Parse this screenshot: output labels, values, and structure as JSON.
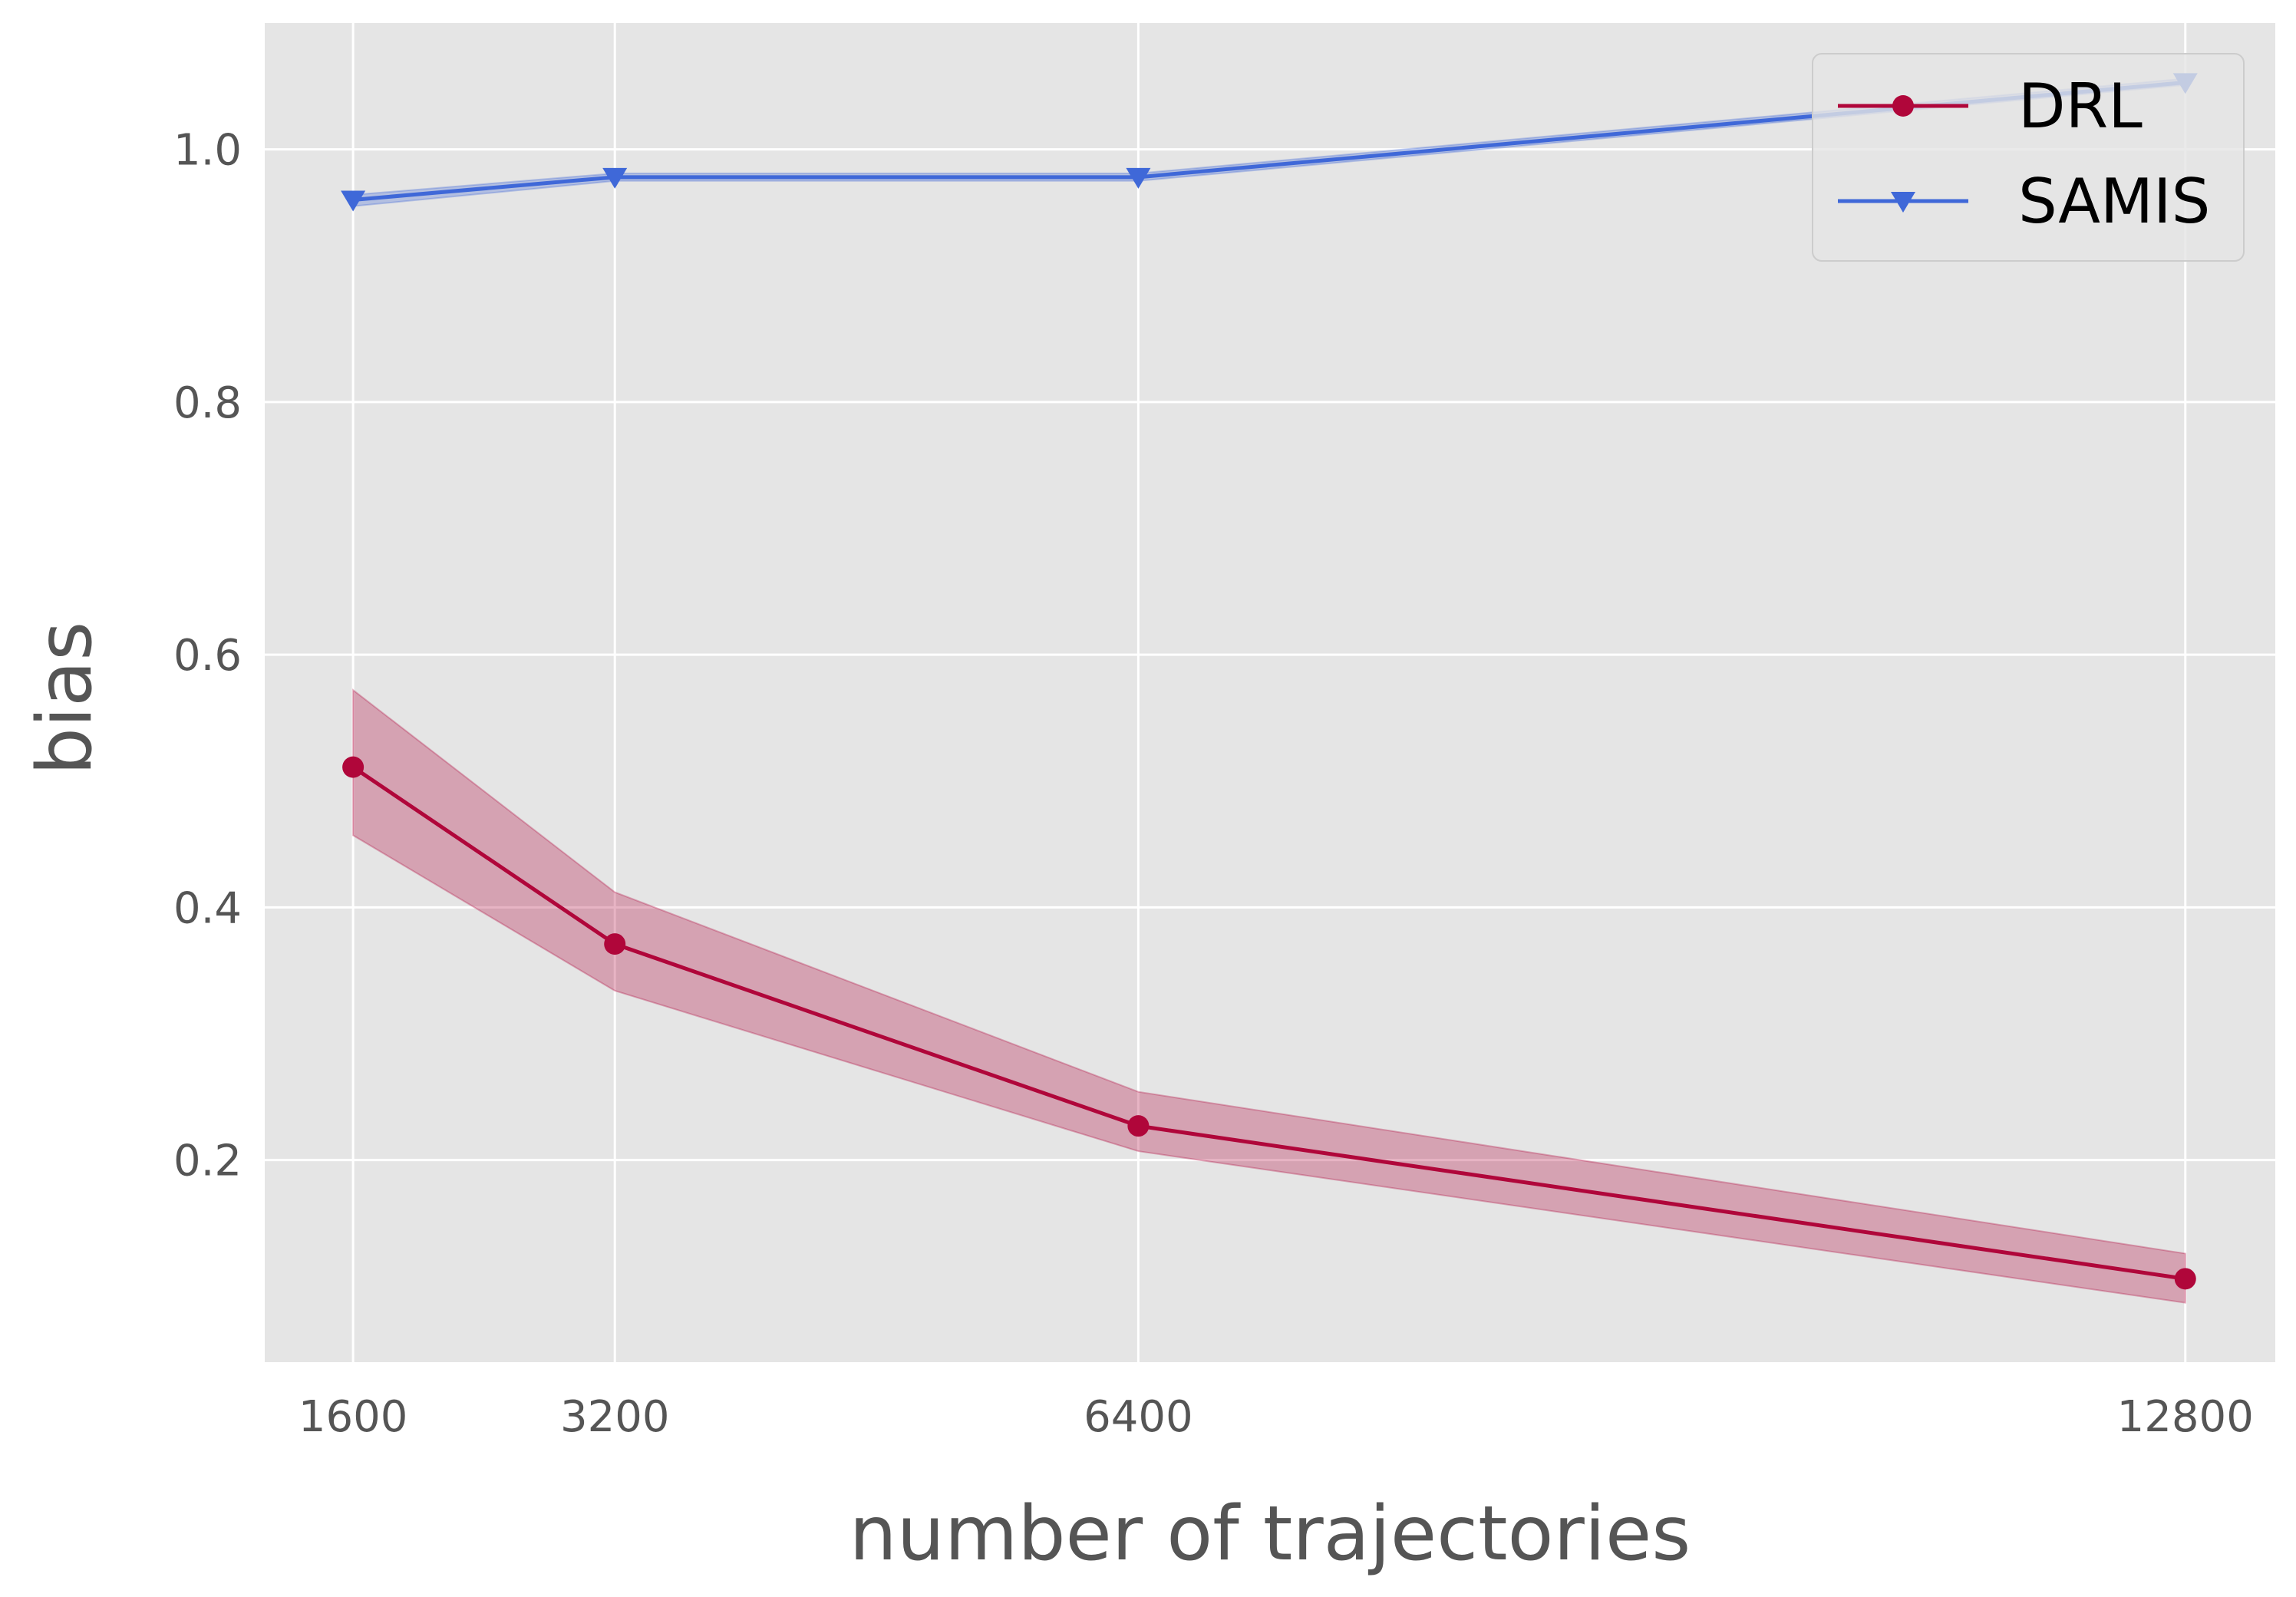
{
  "chart_data": {
    "type": "line",
    "title": "",
    "xlabel": "number of trajectories",
    "ylabel": "bias",
    "x": [
      1600,
      3200,
      6400,
      12800
    ],
    "xticks": [
      "1600",
      "3200",
      "6400",
      "12800"
    ],
    "yticks": [
      "0.2",
      "0.4",
      "0.6",
      "0.8",
      "1.0"
    ],
    "xlim": [
      1060,
      13350
    ],
    "ylim": [
      0.04,
      1.1
    ],
    "grid": true,
    "legend_position": "top-right",
    "series": [
      {
        "name": "DRL",
        "values": [
          0.511,
          0.371,
          0.227,
          0.106
        ],
        "lower": [
          0.457,
          0.334,
          0.207,
          0.087
        ],
        "upper": [
          0.572,
          0.412,
          0.254,
          0.126
        ],
        "color": "#b0063a",
        "marker": "circle"
      },
      {
        "name": "SAMIS",
        "values": [
          0.96,
          0.978,
          0.978,
          1.053
        ],
        "lower": [
          0.955,
          0.975,
          0.975,
          1.051
        ],
        "upper": [
          0.964,
          0.981,
          0.981,
          1.056
        ],
        "color": "#3f68d8",
        "marker": "triangle-down"
      }
    ]
  }
}
